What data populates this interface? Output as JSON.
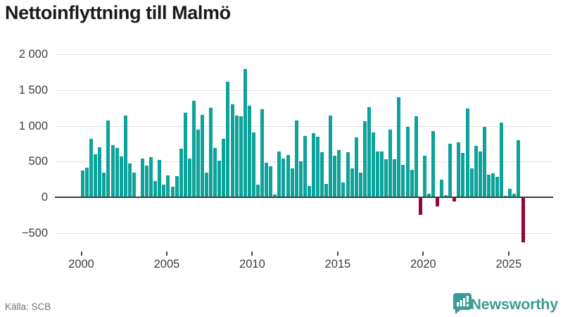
{
  "title": "Nettoinflyttning till Malmö",
  "source": "Källa: SCB",
  "branding": {
    "name": "Newsworthy",
    "icon": "newsworthy-pin-barchart-icon"
  },
  "colors": {
    "positive_bar": "#0da39b",
    "negative_bar": "#960538",
    "grid": "#e3e3e3",
    "zero_axis": "#3f3f3f",
    "tick_text": "#3f3f3f",
    "title_text": "#1a1a1a",
    "source_text": "#737373",
    "brand_teal": "#3a9c94"
  },
  "chart_data": {
    "type": "bar",
    "title": "Nettoinflyttning till Malmö",
    "xlabel": "",
    "ylabel": "",
    "grid": "horizontal",
    "ylim": [
      -690,
      2070
    ],
    "y_ticks": [
      2000,
      1500,
      1000,
      500,
      0,
      -500
    ],
    "y_tick_labels": [
      "2 000",
      "1 500",
      "1 000",
      "500",
      "0",
      "−500"
    ],
    "x_tick_years": [
      2000,
      2005,
      2010,
      2015,
      2020,
      2025
    ],
    "x_tick_labels": [
      "2000",
      "2005",
      "2010",
      "2015",
      "2020",
      "2025"
    ],
    "series": [
      {
        "name": "Nettoinflyttning till Malmö",
        "frequency": "quarterly",
        "start_year": 2000,
        "start_quarter": 1,
        "values": [
          370,
          410,
          820,
          600,
          700,
          340,
          1070,
          730,
          690,
          575,
          1140,
          475,
          345,
          10,
          540,
          445,
          565,
          225,
          520,
          180,
          305,
          145,
          300,
          675,
          1180,
          545,
          1345,
          950,
          1150,
          345,
          1250,
          685,
          510,
          820,
          1620,
          1300,
          1140,
          1130,
          1795,
          1280,
          910,
          180,
          1230,
          480,
          430,
          40,
          645,
          545,
          595,
          400,
          1070,
          500,
          860,
          160,
          900,
          850,
          635,
          190,
          1145,
          585,
          660,
          210,
          630,
          400,
          835,
          340,
          1060,
          1265,
          910,
          645,
          645,
          530,
          950,
          535,
          1395,
          455,
          990,
          380,
          1130,
          -235,
          580,
          50,
          925,
          -115,
          250,
          25,
          750,
          -50,
          770,
          620,
          1245,
          400,
          715,
          645,
          985,
          315,
          335,
          290,
          1040,
          15,
          120,
          50,
          800,
          -625
        ]
      }
    ]
  }
}
